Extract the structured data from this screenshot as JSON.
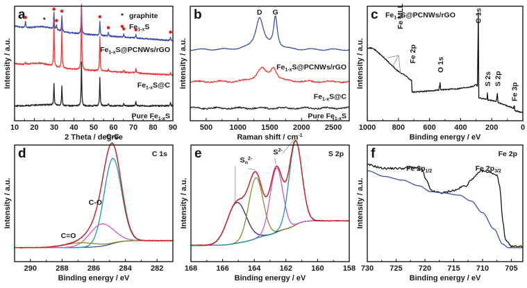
{
  "chart_data": [
    {
      "panel": "a",
      "type": "line",
      "title": "",
      "xlabel": "2 Theta / degree",
      "ylabel": "Intensity / a.u.",
      "xlim": [
        10,
        90
      ],
      "xticks": [
        10,
        20,
        30,
        40,
        50,
        60,
        70,
        80,
        90
      ],
      "legend": {
        "placement": "top-right",
        "entries": [
          {
            "marker": "*",
            "label": "graphite"
          },
          {
            "marker": "red-dot",
            "label": "Fe1-xS",
            "main": "Fe",
            "sub": "1-x",
            "tail": "S"
          }
        ]
      },
      "series": [
        {
          "name": "Fe1-xS@PCNWs/rGO",
          "label_main": "Fe",
          "label_sub": "1-x",
          "label_tail": "S@PCNWs/rGO",
          "color": "#3a4fb0",
          "baseline_start": 0.83,
          "baseline_end": 0.7,
          "peaks": [
            [
              15.5,
              0.05
            ],
            [
              29.9,
              0.15
            ],
            [
              31.2,
              0.05
            ],
            [
              33.9,
              0.14
            ],
            [
              43.8,
              0.27
            ],
            [
              53.1,
              0.12
            ],
            [
              57.4,
              0.03
            ],
            [
              65.2,
              0.03
            ],
            [
              71.3,
              0.03
            ],
            [
              88.8,
              0.03
            ]
          ],
          "bump": [
            25,
            0.03
          ]
        },
        {
          "name": "Fe1-xS@C",
          "label_main": "Fe",
          "label_sub": "1-x",
          "label_tail": "S@C",
          "color": "#e83a3a",
          "baseline_start": 0.5,
          "baseline_end": 0.4,
          "peaks": [
            [
              15.5,
              0.02
            ],
            [
              29.9,
              0.4
            ],
            [
              33.9,
              0.36
            ],
            [
              43.8,
              0.58
            ],
            [
              53.1,
              0.3
            ],
            [
              57.4,
              0.02
            ],
            [
              65.2,
              0.02
            ],
            [
              71.3,
              0.04
            ],
            [
              88.8,
              0.02
            ]
          ],
          "bump": [
            23,
            0.03
          ]
        },
        {
          "name": "Pure Fe1-xS",
          "label_main": "Pure Fe",
          "label_sub": "1-x",
          "label_tail": "S",
          "color": "#222222",
          "baseline_start": 0.13,
          "baseline_end": 0.13,
          "peaks": [
            [
              29.9,
              0.19
            ],
            [
              33.9,
              0.17
            ],
            [
              43.8,
              0.4
            ],
            [
              53.1,
              0.25
            ],
            [
              57.4,
              0.02
            ],
            [
              65.2,
              0.02
            ],
            [
              71.3,
              0.04
            ],
            [
              88.8,
              0.03
            ]
          ],
          "bump": [
            25,
            0.01
          ]
        }
      ],
      "markers": {
        "fe1xs": [
          15.5,
          29.9,
          31.2,
          33.9,
          43.8,
          53.1,
          57.4,
          65.2,
          71.3,
          88.8
        ],
        "graphite": [
          25
        ]
      }
    },
    {
      "panel": "b",
      "type": "line",
      "xlabel": "Raman shift / cm",
      "xlabel_sup": "-1",
      "ylabel": "Intensity / a.u.",
      "xlim": [
        250,
        2750
      ],
      "xticks": [
        500,
        1000,
        1500,
        2000,
        2500
      ],
      "annotations": [
        {
          "text": "D",
          "x": 1340
        },
        {
          "text": "G",
          "x": 1590
        }
      ],
      "series": [
        {
          "name": "Fe1-xS@PCNWs/rGO",
          "label_main": "Fe",
          "label_sub": "1-x",
          "label_tail": "S@PCNWs/rGO",
          "color": "#3a4fb0",
          "baseline": 0.62,
          "peaks": [
            [
              1340,
              0.28,
              75
            ],
            [
              1590,
              0.28,
              35
            ]
          ]
        },
        {
          "name": "Fe1-xS@C",
          "label_main": "Fe",
          "label_sub": "1-x",
          "label_tail": "S@C",
          "color": "#e83a3a",
          "baseline": 0.34,
          "peaks": [
            [
              1370,
              0.11,
              90
            ],
            [
              1560,
              0.11,
              60
            ]
          ]
        },
        {
          "name": "Pure Fe1-xS",
          "label_main": "Pure Fe",
          "label_sub": "1-x",
          "label_tail": "S",
          "color": "#222222",
          "baseline": 0.11,
          "peaks": []
        }
      ]
    },
    {
      "panel": "c",
      "type": "line",
      "title": "Fe1-xS@PCNWs/rGO",
      "title_main": "Fe",
      "title_sub": "1-x",
      "title_tail": "S@PCNWs/rGO",
      "xlabel": "Binding energy / eV",
      "ylabel": "Intensity / a.u.",
      "xlim": [
        1000,
        0
      ],
      "xticks": [
        1000,
        800,
        600,
        400,
        200,
        0
      ],
      "series": [
        {
          "name": "survey",
          "color": "#111111",
          "points": [
            [
              1000,
              0.64
            ],
            [
              960,
              0.63
            ],
            [
              900,
              0.56
            ],
            [
              840,
              0.48
            ],
            [
              800,
              0.43
            ],
            [
              760,
              0.4
            ],
            [
              715,
              0.35
            ],
            [
              712,
              0.25
            ],
            [
              705,
              0.25
            ],
            [
              600,
              0.26
            ],
            [
              540,
              0.27
            ],
            [
              532,
              0.33
            ],
            [
              528,
              0.27
            ],
            [
              420,
              0.28
            ],
            [
              320,
              0.3
            ],
            [
              300,
              0.32
            ],
            [
              292,
              0.3
            ],
            [
              286,
              0.95
            ],
            [
              283,
              0.2
            ],
            [
              240,
              0.19
            ],
            [
              230,
              0.19
            ],
            [
              228,
              0.24
            ],
            [
              224,
              0.18
            ],
            [
              170,
              0.17
            ],
            [
              164,
              0.24
            ],
            [
              160,
              0.16
            ],
            [
              60,
              0.11
            ],
            [
              55,
              0.13
            ],
            [
              52,
              0.09
            ],
            [
              0,
              0.07
            ]
          ]
        }
      ],
      "annotations": [
        {
          "text": "Fe MLL",
          "x": 790,
          "rotated": true
        },
        {
          "text": "Fe 2p",
          "x": 710,
          "rotated": true
        },
        {
          "text": "O 1s",
          "x": 531,
          "rotated": true
        },
        {
          "text": "C 1s",
          "x": 285,
          "rotated": true
        },
        {
          "text": "S 2s",
          "x": 228,
          "rotated": true
        },
        {
          "text": "S 2p",
          "x": 164,
          "rotated": true
        },
        {
          "text": "Fe 3p",
          "x": 55,
          "rotated": true
        }
      ]
    },
    {
      "panel": "d",
      "type": "line",
      "title": "C 1s",
      "xlabel": "Binding energy / eV",
      "ylabel": "Intensity / a.u.",
      "xlim": [
        291,
        281
      ],
      "xticks": [
        290,
        288,
        286,
        284,
        282
      ],
      "annotations": [
        {
          "text": "C-C"
        },
        {
          "text": "C-O"
        },
        {
          "text": "C=O"
        }
      ],
      "background": {
        "left": 0.18,
        "right": 0.12
      },
      "components": [
        {
          "name": "C-C",
          "center": 284.8,
          "height": 0.73,
          "width": 0.55,
          "color": "#1a9a9a"
        },
        {
          "name": "C-O",
          "center": 285.5,
          "height": 0.19,
          "width": 0.75,
          "color": "#cc55cc"
        },
        {
          "name": "C=O",
          "center": 286.8,
          "height": 0.04,
          "width": 1.0,
          "color": "#8a8a2a"
        }
      ],
      "envelope_color": "#e02020",
      "background_color": "#3a4fb0"
    },
    {
      "panel": "e",
      "type": "line",
      "title": "S 2p",
      "xlabel": "Binding energy / eV",
      "ylabel": "Intensity / a.u.",
      "xlim": [
        168,
        158
      ],
      "xticks": [
        168,
        166,
        164,
        162,
        160,
        158
      ],
      "annotations": [
        {
          "text": "S",
          "sub": "n",
          "sup": "2-"
        },
        {
          "text": "S",
          "sup": "2-"
        }
      ],
      "background": {
        "left": 0.35,
        "right": 0.14
      },
      "components": [
        {
          "name": "Sn2- (165.1)",
          "center": 165.1,
          "height": 0.35,
          "width": 0.6,
          "color": "#2a2a8a"
        },
        {
          "name": "Sn2- (163.9)",
          "center": 163.9,
          "height": 0.52,
          "width": 0.45,
          "color": "#8a8a2a"
        },
        {
          "name": "S2- (162.6)",
          "center": 162.6,
          "height": 0.55,
          "width": 0.4,
          "color": "#cc55cc"
        },
        {
          "name": "S2- (161.4)",
          "center": 161.4,
          "height": 0.72,
          "width": 0.4,
          "color": "#1a9a9a"
        }
      ],
      "envelope_color": "#e02020",
      "background_color": "#3a4fb0"
    },
    {
      "panel": "f",
      "type": "line",
      "title": "Fe 2p",
      "xlabel": "Binding energy / eV",
      "ylabel": "Intensity / a.u.",
      "xlim": [
        730,
        703
      ],
      "xticks": [
        730,
        725,
        720,
        715,
        710,
        705
      ],
      "annotations": [
        {
          "text": "Fe 2p",
          "sub": "1/2",
          "x": 721
        },
        {
          "text": "Fe 2p",
          "sub": "3/2",
          "x": 709
        }
      ],
      "series": [
        {
          "name": "data",
          "color": "#111111",
          "points": [
            [
              730,
              0.83
            ],
            [
              727,
              0.8
            ],
            [
              724,
              0.8
            ],
            [
              722,
              0.81
            ],
            [
              720.5,
              0.79
            ],
            [
              719.8,
              0.7
            ],
            [
              719,
              0.62
            ],
            [
              718.5,
              0.6
            ],
            [
              717,
              0.59
            ],
            [
              715,
              0.61
            ],
            [
              713,
              0.65
            ],
            [
              711.5,
              0.72
            ],
            [
              710.3,
              0.78
            ],
            [
              709,
              0.77
            ],
            [
              707.5,
              0.74
            ],
            [
              707,
              0.65
            ],
            [
              706.5,
              0.35
            ],
            [
              706,
              0.18
            ],
            [
              705,
              0.13
            ],
            [
              703,
              0.13
            ]
          ]
        },
        {
          "name": "background",
          "color": "#3a4fb0",
          "points": [
            [
              730,
              0.78
            ],
            [
              727,
              0.73
            ],
            [
              724,
              0.7
            ],
            [
              721,
              0.65
            ],
            [
              719,
              0.6
            ],
            [
              717,
              0.59
            ],
            [
              714,
              0.57
            ],
            [
              712,
              0.52
            ],
            [
              710,
              0.42
            ],
            [
              708,
              0.28
            ],
            [
              706.5,
              0.15
            ],
            [
              705.5,
              0.12
            ],
            [
              703,
              0.12
            ]
          ]
        }
      ]
    }
  ],
  "panels": {
    "a": {
      "letter": "a"
    },
    "b": {
      "letter": "b"
    },
    "c": {
      "letter": "c"
    },
    "d": {
      "letter": "d"
    },
    "e": {
      "letter": "e"
    },
    "f": {
      "letter": "f"
    }
  }
}
